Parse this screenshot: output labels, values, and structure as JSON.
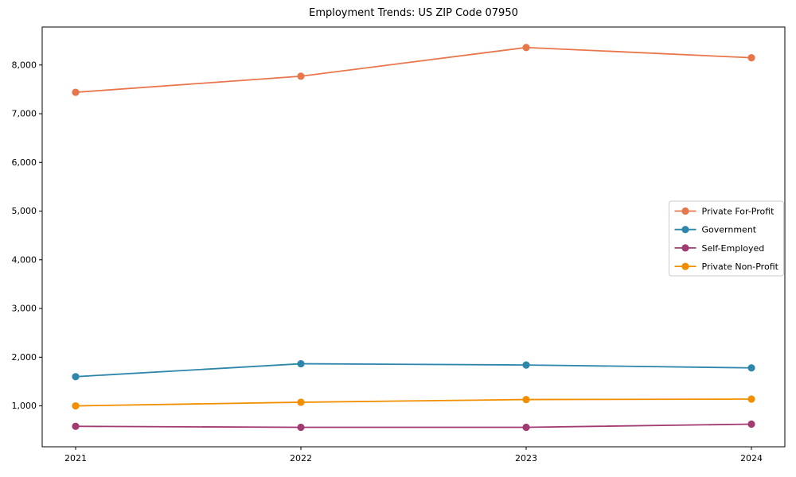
{
  "chart_data": {
    "type": "line",
    "title": "Employment Trends: US ZIP Code 07950",
    "x": [
      "2021",
      "2022",
      "2023",
      "2024"
    ],
    "series": [
      {
        "name": "Private For-Profit",
        "color": "#E8764B",
        "values": [
          7440,
          7770,
          8360,
          8150
        ]
      },
      {
        "name": "Government",
        "color": "#2E86AB",
        "values": [
          1600,
          1865,
          1840,
          1780
        ]
      },
      {
        "name": "Self-Employed",
        "color": "#A23B72",
        "values": [
          580,
          560,
          560,
          625
        ]
      },
      {
        "name": "Private Non-Profit",
        "color": "#F18F01",
        "values": [
          1000,
          1075,
          1130,
          1140
        ]
      }
    ],
    "xlabel": "",
    "ylabel": "",
    "ylim": [
      160,
      8780
    ],
    "yticks": [
      1000,
      2000,
      3000,
      4000,
      5000,
      6000,
      7000,
      8000
    ],
    "ytick_labels": [
      "1,000",
      "2,000",
      "3,000",
      "4,000",
      "5,000",
      "6,000",
      "7,000",
      "8,000"
    ],
    "grid": false,
    "legend_position": "center-right",
    "marker": "circle",
    "axis_color": "#000000",
    "legend_border_color": "#cccccc",
    "background": "#ffffff"
  }
}
